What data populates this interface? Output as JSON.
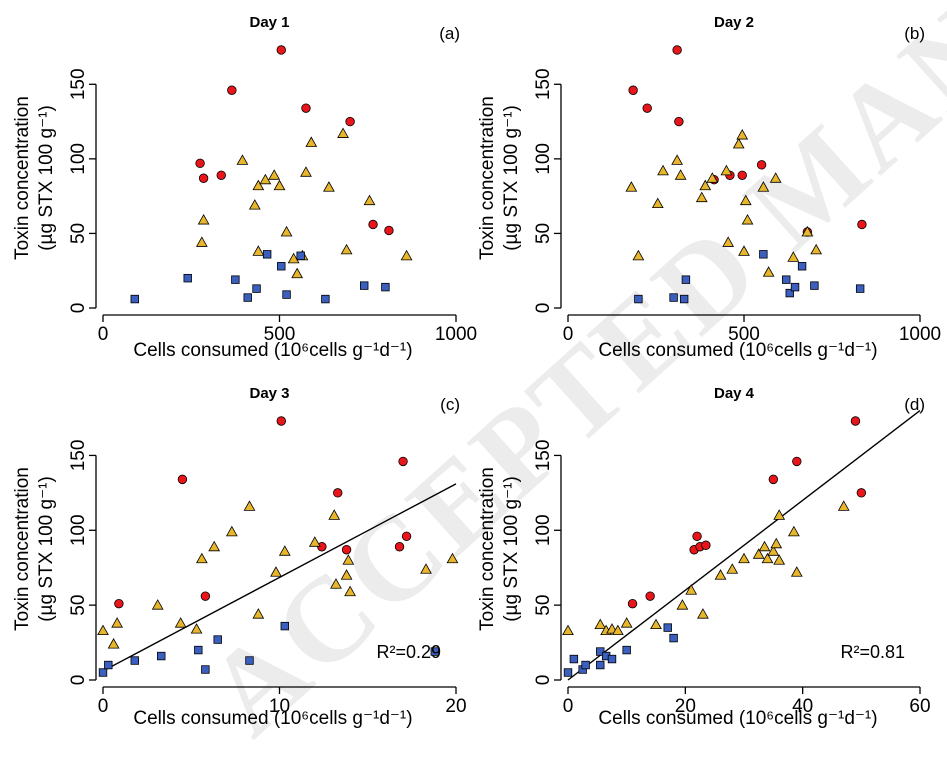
{
  "watermark": "ACCEPTED MANUSCRIPT",
  "colors": {
    "red": "#e8151b",
    "yellow": "#e8b62c",
    "blue": "#3a5fbf",
    "axis": "#000000"
  },
  "axis_titles": {
    "y_line1": "Toxin concentration",
    "y_line2": "(µg STX 100 g⁻¹)",
    "x": "Cells consumed  (10⁶cells g⁻¹d⁻¹)"
  },
  "chart_data": [
    {
      "type": "scatter",
      "title": "Day 1",
      "label": "(a)",
      "xlim": [
        0,
        1000
      ],
      "ylim": [
        0,
        175
      ],
      "xticks": [
        0,
        500,
        1000
      ],
      "yticks": [
        0,
        50,
        100,
        150
      ],
      "series": [
        {
          "marker": "circle",
          "color": "red",
          "points": [
            [
              275,
              97
            ],
            [
              285,
              87
            ],
            [
              335,
              89
            ],
            [
              365,
              146
            ],
            [
              505,
              173
            ],
            [
              575,
              134
            ],
            [
              700,
              125
            ],
            [
              765,
              56
            ],
            [
              810,
              52
            ]
          ]
        },
        {
          "marker": "triangle",
          "color": "yellow",
          "points": [
            [
              285,
              59
            ],
            [
              280,
              44
            ],
            [
              395,
              99
            ],
            [
              430,
              69
            ],
            [
              440,
              38
            ],
            [
              440,
              82
            ],
            [
              460,
              86
            ],
            [
              485,
              89
            ],
            [
              500,
              82
            ],
            [
              520,
              51
            ],
            [
              540,
              33
            ],
            [
              550,
              23
            ],
            [
              565,
              35
            ],
            [
              575,
              91
            ],
            [
              590,
              111
            ],
            [
              640,
              81
            ],
            [
              680,
              117
            ],
            [
              690,
              39
            ],
            [
              755,
              72
            ],
            [
              860,
              35
            ]
          ]
        },
        {
          "marker": "square",
          "color": "blue",
          "points": [
            [
              90,
              6
            ],
            [
              240,
              20
            ],
            [
              375,
              19
            ],
            [
              410,
              7
            ],
            [
              435,
              13
            ],
            [
              465,
              36
            ],
            [
              505,
              28
            ],
            [
              520,
              9
            ],
            [
              560,
              35
            ],
            [
              630,
              6
            ],
            [
              740,
              15
            ],
            [
              800,
              14
            ]
          ]
        }
      ]
    },
    {
      "type": "scatter",
      "title": "Day 2",
      "label": "(b)",
      "xlim": [
        0,
        1000
      ],
      "ylim": [
        0,
        175
      ],
      "xticks": [
        0,
        500,
        1000
      ],
      "yticks": [
        0,
        50,
        100,
        150
      ],
      "series": [
        {
          "marker": "circle",
          "color": "red",
          "points": [
            [
              185,
              146
            ],
            [
              225,
              134
            ],
            [
              310,
              173
            ],
            [
              315,
              125
            ],
            [
              415,
              86
            ],
            [
              460,
              89
            ],
            [
              495,
              89
            ],
            [
              550,
              96
            ],
            [
              680,
              51
            ],
            [
              835,
              56
            ]
          ]
        },
        {
          "marker": "triangle",
          "color": "yellow",
          "points": [
            [
              180,
              81
            ],
            [
              200,
              35
            ],
            [
              255,
              70
            ],
            [
              270,
              92
            ],
            [
              310,
              99
            ],
            [
              320,
              89
            ],
            [
              380,
              74
            ],
            [
              390,
              82
            ],
            [
              410,
              87
            ],
            [
              450,
              92
            ],
            [
              455,
              44
            ],
            [
              485,
              110
            ],
            [
              495,
              116
            ],
            [
              500,
              38
            ],
            [
              505,
              72
            ],
            [
              510,
              59
            ],
            [
              555,
              81
            ],
            [
              570,
              24
            ],
            [
              590,
              87
            ],
            [
              640,
              34
            ],
            [
              680,
              51
            ],
            [
              705,
              39
            ]
          ]
        },
        {
          "marker": "square",
          "color": "blue",
          "points": [
            [
              200,
              6
            ],
            [
              300,
              7
            ],
            [
              330,
              6
            ],
            [
              335,
              19
            ],
            [
              555,
              36
            ],
            [
              620,
              19
            ],
            [
              630,
              10
            ],
            [
              645,
              14
            ],
            [
              665,
              28
            ],
            [
              700,
              15
            ],
            [
              830,
              13
            ]
          ]
        }
      ]
    },
    {
      "type": "scatter",
      "title": "Day 3",
      "label": "(c)",
      "xlim": [
        0,
        20
      ],
      "ylim": [
        0,
        175
      ],
      "xticks": [
        0,
        10,
        20
      ],
      "yticks": [
        0,
        50,
        100,
        150
      ],
      "annotation": "R²=0.29",
      "fit": {
        "x": [
          0,
          20
        ],
        "y": [
          6,
          131
        ]
      },
      "series": [
        {
          "marker": "circle",
          "color": "red",
          "points": [
            [
              0.9,
              51
            ],
            [
              4.5,
              134
            ],
            [
              5.8,
              56
            ],
            [
              10.1,
              173
            ],
            [
              12.4,
              89
            ],
            [
              13.3,
              125
            ],
            [
              13.8,
              87
            ],
            [
              16.8,
              89
            ],
            [
              17.0,
              146
            ],
            [
              17.2,
              96
            ]
          ]
        },
        {
          "marker": "triangle",
          "color": "yellow",
          "points": [
            [
              0,
              33
            ],
            [
              0.6,
              24
            ],
            [
              0.8,
              38
            ],
            [
              3.1,
              50
            ],
            [
              4.4,
              38
            ],
            [
              5.3,
              34
            ],
            [
              5.6,
              81
            ],
            [
              6.3,
              89
            ],
            [
              7.3,
              99
            ],
            [
              8.3,
              116
            ],
            [
              8.8,
              44
            ],
            [
              9.8,
              72
            ],
            [
              10.3,
              86
            ],
            [
              12.0,
              92
            ],
            [
              13.1,
              110
            ],
            [
              13.2,
              64
            ],
            [
              13.8,
              70
            ],
            [
              13.9,
              80
            ],
            [
              14.0,
              59
            ],
            [
              18.3,
              74
            ],
            [
              19.8,
              81
            ]
          ]
        },
        {
          "marker": "square",
          "color": "blue",
          "points": [
            [
              0,
              5
            ],
            [
              0.3,
              10
            ],
            [
              1.8,
              13
            ],
            [
              3.3,
              16
            ],
            [
              5.4,
              20
            ],
            [
              5.8,
              7
            ],
            [
              6.5,
              27
            ],
            [
              8.3,
              13
            ],
            [
              10.3,
              36
            ],
            [
              18.8,
              19
            ]
          ]
        }
      ]
    },
    {
      "type": "scatter",
      "title": "Day 4",
      "label": "(d)",
      "xlim": [
        0,
        60
      ],
      "ylim": [
        0,
        175
      ],
      "xticks": [
        0,
        20,
        40,
        60
      ],
      "yticks": [
        0,
        50,
        100,
        150
      ],
      "annotation": "R²=0.81",
      "fit": {
        "x": [
          0,
          60
        ],
        "y": [
          0,
          180
        ]
      },
      "series": [
        {
          "marker": "circle",
          "color": "red",
          "points": [
            [
              11,
              51
            ],
            [
              14,
              56
            ],
            [
              21.5,
              87
            ],
            [
              22,
              96
            ],
            [
              22.5,
              89
            ],
            [
              23.5,
              90
            ],
            [
              35,
              134
            ],
            [
              39,
              146
            ],
            [
              49,
              173
            ],
            [
              50,
              125
            ]
          ]
        },
        {
          "marker": "triangle",
          "color": "yellow",
          "points": [
            [
              0,
              33
            ],
            [
              5.5,
              37
            ],
            [
              6.5,
              33
            ],
            [
              7.5,
              34
            ],
            [
              8.5,
              33
            ],
            [
              10,
              38
            ],
            [
              15,
              37
            ],
            [
              19.5,
              50
            ],
            [
              21,
              60
            ],
            [
              23,
              44
            ],
            [
              26,
              70
            ],
            [
              28,
              74
            ],
            [
              30,
              81
            ],
            [
              32.5,
              84
            ],
            [
              33.5,
              89
            ],
            [
              34,
              81
            ],
            [
              35,
              86
            ],
            [
              35.5,
              91
            ],
            [
              36,
              80
            ],
            [
              36,
              110
            ],
            [
              38.5,
              99
            ],
            [
              39,
              72
            ],
            [
              47,
              116
            ]
          ]
        },
        {
          "marker": "square",
          "color": "blue",
          "points": [
            [
              0,
              5
            ],
            [
              1,
              14
            ],
            [
              2.5,
              7
            ],
            [
              3,
              10
            ],
            [
              5.5,
              10
            ],
            [
              5.5,
              19
            ],
            [
              6.5,
              16
            ],
            [
              7.5,
              14
            ],
            [
              10,
              20
            ],
            [
              17,
              35
            ],
            [
              18,
              28
            ]
          ]
        }
      ]
    }
  ]
}
